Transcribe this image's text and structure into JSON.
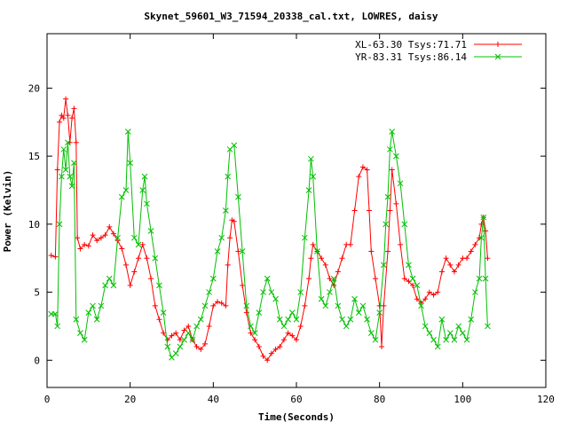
{
  "chart_data": {
    "type": "line",
    "title": "Skynet_59601_W3_71594_20338_cal.txt, LOWRES, daisy",
    "xlabel": "Time(Seconds)",
    "ylabel": "Power (Kelvin)",
    "xlim": [
      0,
      120
    ],
    "ylim": [
      -2,
      24
    ],
    "x_ticks": [
      0,
      20,
      40,
      60,
      80,
      100,
      120
    ],
    "y_ticks": [
      0,
      5,
      10,
      15,
      20
    ],
    "grid": false,
    "legend": "top-right",
    "series": [
      {
        "name": "XL-63.30 Tsys:71.71",
        "color": "#ff0000",
        "marker": "plus",
        "points": [
          [
            1,
            7.7
          ],
          [
            2,
            7.6
          ],
          [
            2.5,
            14
          ],
          [
            3,
            17.5
          ],
          [
            3.5,
            18
          ],
          [
            4,
            17.8
          ],
          [
            4.5,
            19.2
          ],
          [
            5,
            18
          ],
          [
            5.5,
            16
          ],
          [
            6,
            17.8
          ],
          [
            6.5,
            18.5
          ],
          [
            7,
            16
          ],
          [
            7.3,
            9
          ],
          [
            8,
            8.2
          ],
          [
            9,
            8.5
          ],
          [
            10,
            8.4
          ],
          [
            11,
            9.2
          ],
          [
            12,
            8.8
          ],
          [
            13,
            9.0
          ],
          [
            14,
            9.2
          ],
          [
            15,
            9.8
          ],
          [
            16,
            9.3
          ],
          [
            17,
            8.8
          ],
          [
            18,
            8.2
          ],
          [
            19,
            7.0
          ],
          [
            20,
            5.5
          ],
          [
            21,
            6.5
          ],
          [
            22,
            7.5
          ],
          [
            23,
            8.5
          ],
          [
            24,
            7.5
          ],
          [
            25,
            6.0
          ],
          [
            26,
            4.0
          ],
          [
            27,
            3.0
          ],
          [
            28,
            2.0
          ],
          [
            29,
            1.5
          ],
          [
            30,
            1.8
          ],
          [
            31,
            2.0
          ],
          [
            32,
            1.5
          ],
          [
            33,
            2.2
          ],
          [
            34,
            2.5
          ],
          [
            35,
            1.5
          ],
          [
            36,
            1.0
          ],
          [
            37,
            0.8
          ],
          [
            38,
            1.2
          ],
          [
            39,
            2.5
          ],
          [
            40,
            4.0
          ],
          [
            41,
            4.3
          ],
          [
            42,
            4.2
          ],
          [
            43,
            4.0
          ],
          [
            43.5,
            7.0
          ],
          [
            44,
            9.0
          ],
          [
            44.5,
            10.3
          ],
          [
            45,
            10.2
          ],
          [
            46,
            8.0
          ],
          [
            47,
            5.5
          ],
          [
            48,
            3.5
          ],
          [
            49,
            2.0
          ],
          [
            50,
            1.5
          ],
          [
            51,
            1.0
          ],
          [
            52,
            0.3
          ],
          [
            53,
            0.0
          ],
          [
            54,
            0.5
          ],
          [
            55,
            0.8
          ],
          [
            56,
            1.0
          ],
          [
            57,
            1.5
          ],
          [
            58,
            2.0
          ],
          [
            59,
            1.8
          ],
          [
            60,
            1.5
          ],
          [
            61,
            2.5
          ],
          [
            62,
            4.0
          ],
          [
            63,
            6.0
          ],
          [
            63.5,
            7.5
          ],
          [
            64,
            8.5
          ],
          [
            65,
            8.0
          ],
          [
            66,
            7.5
          ],
          [
            67,
            7.0
          ],
          [
            68,
            6.0
          ],
          [
            69,
            5.5
          ],
          [
            70,
            6.5
          ],
          [
            71,
            7.5
          ],
          [
            72,
            8.5
          ],
          [
            73,
            8.5
          ],
          [
            74,
            11.0
          ],
          [
            75,
            13.5
          ],
          [
            76,
            14.2
          ],
          [
            77,
            14.0
          ],
          [
            77.5,
            11
          ],
          [
            78,
            8.0
          ],
          [
            79,
            6.0
          ],
          [
            80,
            4.0
          ],
          [
            80.5,
            1.0
          ],
          [
            81,
            4.0
          ],
          [
            82,
            8.0
          ],
          [
            82.5,
            11.0
          ],
          [
            83,
            14.0
          ],
          [
            84,
            11.5
          ],
          [
            85,
            8.5
          ],
          [
            86,
            6.0
          ],
          [
            87,
            5.8
          ],
          [
            88,
            5.5
          ],
          [
            89,
            4.5
          ],
          [
            90,
            4.2
          ],
          [
            91,
            4.5
          ],
          [
            92,
            5.0
          ],
          [
            93,
            4.8
          ],
          [
            94,
            5.0
          ],
          [
            95,
            6.5
          ],
          [
            96,
            7.5
          ],
          [
            97,
            7.0
          ],
          [
            98,
            6.5
          ],
          [
            99,
            7.0
          ],
          [
            100,
            7.5
          ],
          [
            101,
            7.5
          ],
          [
            102,
            8.0
          ],
          [
            103,
            8.5
          ],
          [
            104,
            9.0
          ],
          [
            104.5,
            10
          ],
          [
            105,
            10.5
          ],
          [
            105.5,
            9.5
          ],
          [
            106,
            7.5
          ]
        ]
      },
      {
        "name": "YR-83.31 Tsys:86.14",
        "color": "#00c000",
        "marker": "x",
        "points": [
          [
            1,
            3.4
          ],
          [
            2,
            3.4
          ],
          [
            2.5,
            2.5
          ],
          [
            3,
            10
          ],
          [
            3.5,
            13.5
          ],
          [
            4,
            15.5
          ],
          [
            4.5,
            14
          ],
          [
            5,
            16
          ],
          [
            5.5,
            13.5
          ],
          [
            6,
            12.8
          ],
          [
            6.5,
            14.5
          ],
          [
            7,
            3.0
          ],
          [
            8,
            2.0
          ],
          [
            9,
            1.5
          ],
          [
            10,
            3.5
          ],
          [
            11,
            4.0
          ],
          [
            12,
            3.0
          ],
          [
            13,
            4.0
          ],
          [
            14,
            5.5
          ],
          [
            15,
            6.0
          ],
          [
            16,
            5.5
          ],
          [
            17,
            9.0
          ],
          [
            18,
            12.0
          ],
          [
            19,
            12.5
          ],
          [
            19.5,
            16.8
          ],
          [
            20,
            14.5
          ],
          [
            21,
            9.0
          ],
          [
            22,
            8.5
          ],
          [
            23,
            12.5
          ],
          [
            23.5,
            13.5
          ],
          [
            24,
            11.5
          ],
          [
            25,
            9.5
          ],
          [
            26,
            7.5
          ],
          [
            27,
            5.5
          ],
          [
            28,
            3.5
          ],
          [
            29,
            1.0
          ],
          [
            30,
            0.2
          ],
          [
            31,
            0.5
          ],
          [
            32,
            1.0
          ],
          [
            33,
            1.5
          ],
          [
            34,
            2.0
          ],
          [
            35,
            1.5
          ],
          [
            36,
            2.5
          ],
          [
            37,
            3.0
          ],
          [
            38,
            4.0
          ],
          [
            39,
            5.0
          ],
          [
            40,
            6.0
          ],
          [
            41,
            8.0
          ],
          [
            42,
            9.0
          ],
          [
            43,
            11.0
          ],
          [
            43.5,
            13.5
          ],
          [
            44,
            15.5
          ],
          [
            45,
            15.8
          ],
          [
            46,
            12.0
          ],
          [
            47,
            8.0
          ],
          [
            48,
            4.0
          ],
          [
            49,
            2.5
          ],
          [
            50,
            2.0
          ],
          [
            51,
            3.5
          ],
          [
            52,
            5.0
          ],
          [
            53,
            6.0
          ],
          [
            54,
            5.0
          ],
          [
            55,
            4.5
          ],
          [
            56,
            3.0
          ],
          [
            57,
            2.5
          ],
          [
            58,
            3.0
          ],
          [
            59,
            3.5
          ],
          [
            60,
            3.0
          ],
          [
            61,
            5.0
          ],
          [
            62,
            9.0
          ],
          [
            63,
            12.5
          ],
          [
            63.5,
            14.8
          ],
          [
            64,
            13.5
          ],
          [
            65,
            8.0
          ],
          [
            66,
            4.5
          ],
          [
            67,
            4.0
          ],
          [
            68,
            5.0
          ],
          [
            69,
            6.0
          ],
          [
            70,
            4.0
          ],
          [
            71,
            3.0
          ],
          [
            72,
            2.5
          ],
          [
            73,
            3.0
          ],
          [
            74,
            4.5
          ],
          [
            75,
            3.5
          ],
          [
            76,
            4.0
          ],
          [
            77,
            3.0
          ],
          [
            78,
            2.0
          ],
          [
            79,
            1.5
          ],
          [
            80,
            3.5
          ],
          [
            81,
            7.0
          ],
          [
            81.5,
            10.0
          ],
          [
            82,
            12.0
          ],
          [
            82.5,
            15.5
          ],
          [
            83,
            16.8
          ],
          [
            84,
            15.0
          ],
          [
            85,
            13.0
          ],
          [
            86,
            10.0
          ],
          [
            87,
            7.0
          ],
          [
            88,
            6.0
          ],
          [
            89,
            5.5
          ],
          [
            90,
            4.0
          ],
          [
            91,
            2.5
          ],
          [
            92,
            2.0
          ],
          [
            93,
            1.5
          ],
          [
            94,
            1.0
          ],
          [
            95,
            3.0
          ],
          [
            96,
            1.5
          ],
          [
            97,
            2.0
          ],
          [
            98,
            1.5
          ],
          [
            99,
            2.5
          ],
          [
            100,
            2.0
          ],
          [
            101,
            1.5
          ],
          [
            102,
            3.0
          ],
          [
            103,
            5.0
          ],
          [
            104,
            6.0
          ],
          [
            104.5,
            9.0
          ],
          [
            105,
            10.5
          ],
          [
            105.5,
            6.0
          ],
          [
            106,
            2.5
          ]
        ]
      }
    ]
  }
}
